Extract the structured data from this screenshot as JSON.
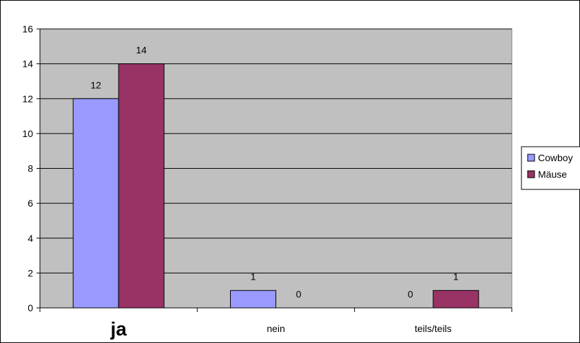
{
  "chart_data": {
    "type": "bar",
    "categories": [
      "ja",
      "nein",
      "teils/teils"
    ],
    "series": [
      {
        "name": "Cowboy",
        "values": [
          12,
          1,
          0
        ],
        "color": "#9999ff"
      },
      {
        "name": "Mäuse",
        "values": [
          14,
          0,
          1
        ],
        "color": "#993366"
      }
    ],
    "ylim": [
      0,
      16
    ],
    "yticks": [
      0,
      2,
      4,
      6,
      8,
      10,
      12,
      14,
      16
    ],
    "grid": true,
    "plot_background": "#c0c0c0",
    "emphasized_category": "ja",
    "legend_position": "right",
    "title": "",
    "xlabel": "",
    "ylabel": ""
  }
}
